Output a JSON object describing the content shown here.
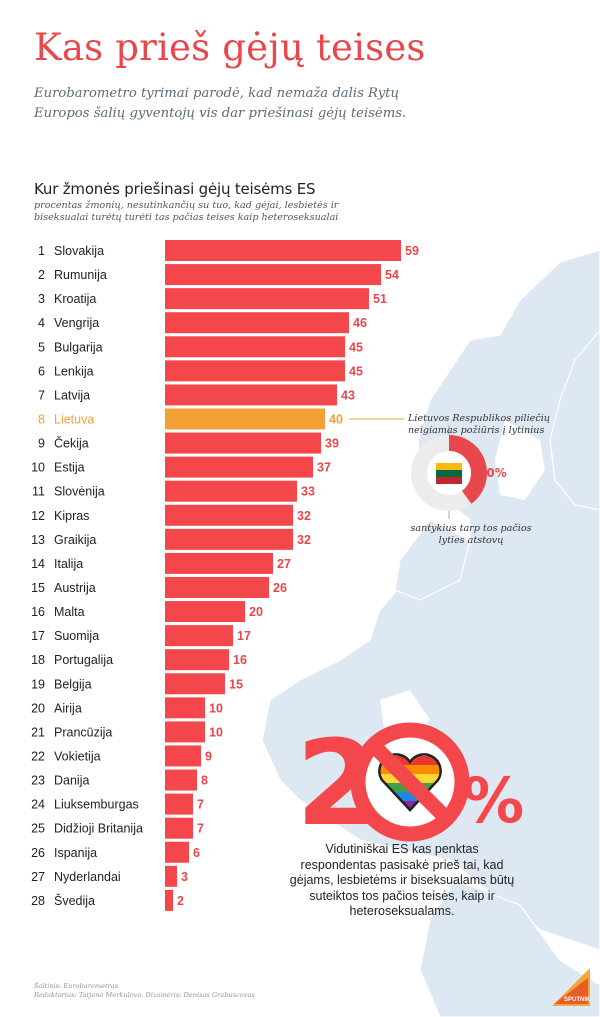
{
  "header": {
    "title": "Kas prieš gėjų teises",
    "subtitle": "Eurobarometro tyrimai parodė, kad nemaža dalis Rytų Europos šalių gyventojų vis dar priešinasi gėjų teisėms."
  },
  "chart_data": {
    "type": "bar",
    "orientation": "horizontal",
    "title": "Kur žmonės priešinasi gėjų teisėms ES",
    "subtitle": "procentas žmonių, nesutinkančių su tuo, kad gėjai, lesbietės ir biseksualai turėtų turėti tas pačias teises kaip heteroseksualai",
    "ranks": [
      1,
      2,
      3,
      4,
      5,
      6,
      7,
      8,
      9,
      10,
      11,
      12,
      13,
      14,
      15,
      16,
      17,
      18,
      19,
      20,
      21,
      22,
      23,
      24,
      25,
      26,
      27,
      28
    ],
    "categories": [
      "Slovakija",
      "Rumunija",
      "Kroatija",
      "Vengrija",
      "Bulgarija",
      "Lenkija",
      "Latvija",
      "Lietuva",
      "Čekija",
      "Estija",
      "Slovėnija",
      "Kipras",
      "Graikija",
      "Italija",
      "Austrija",
      "Malta",
      "Suomija",
      "Portugalija",
      "Belgija",
      "Airija",
      "Prancūzija",
      "Vokietija",
      "Danija",
      "Liuksemburgas",
      "Didžioji Britanija",
      "Ispanija",
      "Nyderlandai",
      "Švedija"
    ],
    "values": [
      59,
      54,
      51,
      46,
      45,
      45,
      43,
      40,
      39,
      37,
      33,
      32,
      32,
      27,
      26,
      20,
      17,
      16,
      15,
      10,
      10,
      9,
      8,
      7,
      7,
      6,
      3,
      2
    ],
    "highlight": "Lietuva",
    "bar_color": "#f4474b",
    "highlight_color": "#f5a035",
    "xlim": [
      0,
      59
    ]
  },
  "callout": {
    "top_text": "Lietuvos Respublikos piliečių neigiamas požiūris į lytinius",
    "bottom_text": "santykius tarp tos pačios lyties atstovų",
    "percent_label": "40%",
    "percent_value": 40
  },
  "stat": {
    "number": "20",
    "percent_sign": "%",
    "text": "Vidutiniškai ES kas penktas respondentas pasisakė prieš tai, kad gėjams, lesbietėms ir biseksualams būtų suteiktos tos pačios teisės, kaip ir heteroseksualams."
  },
  "footer": {
    "source": "Šaltinis: Eurobarometras",
    "credits": "Redaktorius: Tatjana Merkulova. Dizainėris: Denisas Grabuscovas"
  },
  "logo": {
    "text": "SPUTNIK"
  },
  "colors": {
    "accent": "#e8474b",
    "map": "#dde8f2",
    "stat": "#f4474b"
  }
}
